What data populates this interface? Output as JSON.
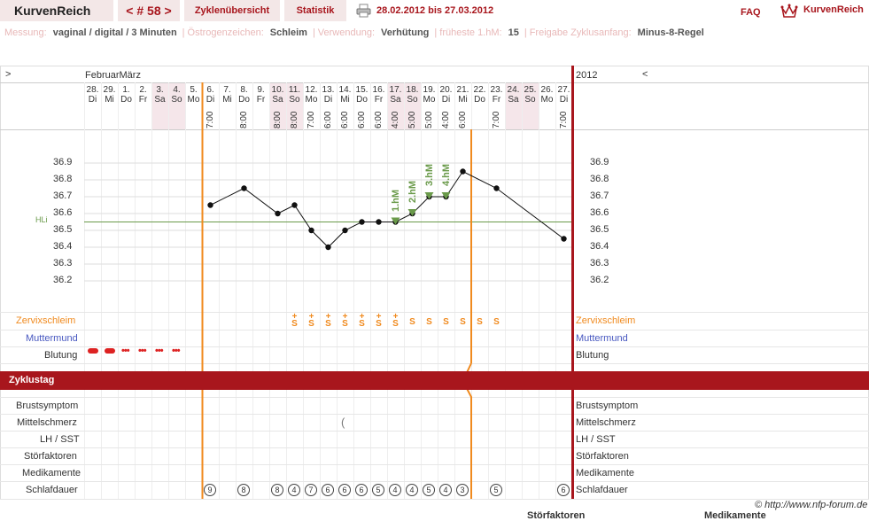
{
  "nav": {
    "app_title": "KurvenReich",
    "cycle_label": "< # 58 >",
    "tab_overview": "Zyklenübersicht",
    "tab_stats": "Statistik",
    "date_range": "28.02.2012 bis 27.03.2012",
    "faq": "FAQ",
    "brand": "KurvenReich"
  },
  "meta": [
    {
      "label": "Messung:",
      "value": "vaginal / digital / 3 Minuten"
    },
    {
      "label": "Östrogenzeichen:",
      "value": "Schleim"
    },
    {
      "label": "Verwendung:",
      "value": "Verhütung"
    },
    {
      "label": "früheste 1.hM:",
      "value": "15"
    },
    {
      "label": "Freigabe Zyklusanfang:",
      "value": "Minus-8-Regel"
    }
  ],
  "grid": {
    "prev": ">",
    "next": "<",
    "month": "FebruarMärz",
    "year": "2012",
    "hl_label": "HLi"
  },
  "days": [
    {
      "d": "28.",
      "w": "Di"
    },
    {
      "d": "29.",
      "w": "Mi"
    },
    {
      "d": "1.",
      "w": "Do"
    },
    {
      "d": "2.",
      "w": "Fr"
    },
    {
      "d": "3.",
      "w": "Sa"
    },
    {
      "d": "4.",
      "w": "So"
    },
    {
      "d": "5.",
      "w": "Mo"
    },
    {
      "d": "6.",
      "w": "Di"
    },
    {
      "d": "7.",
      "w": "Mi"
    },
    {
      "d": "8.",
      "w": "Do"
    },
    {
      "d": "9.",
      "w": "Fr"
    },
    {
      "d": "10.",
      "w": "Sa"
    },
    {
      "d": "11.",
      "w": "So"
    },
    {
      "d": "12.",
      "w": "Mo"
    },
    {
      "d": "13.",
      "w": "Di"
    },
    {
      "d": "14.",
      "w": "Mi"
    },
    {
      "d": "15.",
      "w": "Do"
    },
    {
      "d": "16.",
      "w": "Fr"
    },
    {
      "d": "17.",
      "w": "Sa"
    },
    {
      "d": "18.",
      "w": "So"
    },
    {
      "d": "19.",
      "w": "Mo"
    },
    {
      "d": "20.",
      "w": "Di"
    },
    {
      "d": "21.",
      "w": "Mi"
    },
    {
      "d": "22.",
      "w": "Do"
    },
    {
      "d": "23.",
      "w": "Fr"
    },
    {
      "d": "24.",
      "w": "Sa"
    },
    {
      "d": "25.",
      "w": "So"
    },
    {
      "d": "26.",
      "w": "Mo"
    },
    {
      "d": "27.",
      "w": "Di"
    }
  ],
  "times": [
    "",
    "",
    "",
    "",
    "",
    "",
    "",
    "7:00",
    "",
    "8:00",
    "",
    "8:00",
    "8:00",
    "7:00",
    "6:00",
    "6:00",
    "6:00",
    "6:00",
    "4:00",
    "5:00",
    "5:00",
    "4:00",
    "6:00",
    "",
    "7:00",
    "",
    "",
    "",
    "7:00"
  ],
  "temp_axis": [
    "36.9",
    "36.8",
    "36.7",
    "36.6",
    "36.5",
    "36.4",
    "36.3",
    "36.2"
  ],
  "temps": [
    null,
    null,
    null,
    null,
    null,
    null,
    null,
    36.65,
    null,
    36.75,
    null,
    36.6,
    36.65,
    36.5,
    36.4,
    36.5,
    36.55,
    36.55,
    36.55,
    36.6,
    36.7,
    36.7,
    36.85,
    null,
    36.75,
    null,
    null,
    null,
    36.45
  ],
  "hm_marks": [
    {
      "day": 19,
      "label": "1.hM"
    },
    {
      "day": 20,
      "label": "2.hM"
    },
    {
      "day": 21,
      "label": "3.hM"
    },
    {
      "day": 22,
      "label": "4.hM"
    }
  ],
  "row_labels": {
    "cervix": "Zervixschleim",
    "mm": "Muttermund",
    "bleeding": "Blutung",
    "cycle_day": "Zyklustag",
    "breast": "Brustsymptom",
    "mittel": "Mittelschmerz",
    "lh": "LH / SST",
    "stoer": "Störfaktoren",
    "med": "Medikamente",
    "sleep": "Schlafdauer"
  },
  "cervix": [
    "",
    "",
    "",
    "",
    "",
    "",
    "",
    "",
    "",
    "",
    "",
    "",
    "S+",
    "S+",
    "S+",
    "S+",
    "S+",
    "S+",
    "S+",
    "S",
    "S",
    "S",
    "S",
    "S",
    "S",
    "",
    "",
    "",
    ""
  ],
  "bleeding": [
    "heavy",
    "heavy",
    "light",
    "light",
    "light",
    "light",
    "",
    "",
    "",
    "",
    "",
    "",
    "",
    "",
    "",
    "",
    "",
    "",
    "",
    "",
    "",
    "",
    "",
    "",
    "",
    "",
    "",
    "",
    ""
  ],
  "sleep": [
    "",
    "",
    "",
    "",
    "",
    "",
    "",
    "9",
    "",
    "8",
    "",
    "8",
    "4",
    "7",
    "6",
    "6",
    "6",
    "5",
    "4",
    "4",
    "5",
    "4",
    "3",
    "",
    "5",
    "",
    "",
    "",
    "6"
  ],
  "footer": {
    "copyright": "© http://www.nfp-forum.de",
    "cut1": "Störfaktoren",
    "cut2": "Medikamente"
  },
  "colors": {
    "accent": "#a8161d",
    "orange": "#f08a1e",
    "green": "#6a9a4a",
    "blue": "#4858c0"
  }
}
